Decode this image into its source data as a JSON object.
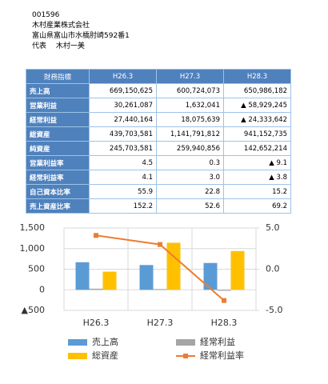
{
  "header": {
    "code": "001596",
    "company": "木村産業株式会社",
    "address": "富山県富山市水橋肘崎592番1",
    "representative": "代表　 木村一美"
  },
  "table": {
    "columns": [
      "財務指標",
      "H26.3",
      "H27.3",
      "H28.3"
    ],
    "rows": [
      [
        "売上高",
        "669,150,625",
        "600,724,073",
        "650,986,182"
      ],
      [
        "営業利益",
        "30,261,087",
        "1,632,041",
        "▲ 58,929,245"
      ],
      [
        "経常利益",
        "27,440,164",
        "18,075,639",
        "▲ 24,333,642"
      ],
      [
        "総資産",
        "439,703,581",
        "1,141,791,812",
        "941,152,735"
      ],
      [
        "純資産",
        "245,703,581",
        "259,940,856",
        "142,652,214"
      ],
      [
        "営業利益率",
        "4.5",
        "0.3",
        "▲ 9.1"
      ],
      [
        "経常利益率",
        "4.1",
        "3.0",
        "▲ 3.8"
      ],
      [
        "自己資本比率",
        "55.9",
        "22.8",
        "15.2"
      ],
      [
        "売上資産比率",
        "152.2",
        "52.6",
        "69.2"
      ]
    ]
  },
  "chart_data": {
    "type": "bar-line",
    "categories": [
      "H26.3",
      "H27.3",
      "H28.3"
    ],
    "series": [
      {
        "name": "売上高",
        "color": "#5b9bd5",
        "type": "bar",
        "values": [
          669,
          601,
          651
        ]
      },
      {
        "name": "経常利益",
        "color": "#a5a5a5",
        "type": "bar",
        "values": [
          27,
          18,
          -24
        ]
      },
      {
        "name": "総資産",
        "color": "#ffc000",
        "type": "bar",
        "values": [
          440,
          1142,
          941
        ]
      },
      {
        "name": "経常利益率",
        "color": "#ed7d31",
        "type": "line",
        "axis": "y2",
        "values": [
          4.1,
          3.0,
          -3.8
        ]
      }
    ],
    "ylim": [
      -500,
      1500
    ],
    "yticks": [
      {
        "value": -500,
        "label": "▲500"
      },
      0,
      500,
      {
        "value": 1000,
        "label": "1,000"
      },
      {
        "value": 1500,
        "label": "1,500"
      }
    ],
    "y2lim": [
      -5,
      5
    ],
    "y2ticks": [
      {
        "value": -5,
        "label": "-5.0"
      },
      {
        "value": 0,
        "label": "0.0"
      },
      {
        "value": 5,
        "label": "5.0"
      }
    ],
    "grid": true
  }
}
